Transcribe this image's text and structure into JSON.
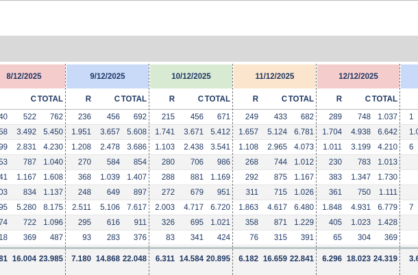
{
  "groups": [
    {
      "date": "8/12/2025",
      "color": "#f4cccc",
      "columns": [
        {
          "header": null,
          "rows": [
            "40",
            "58",
            "99",
            "53",
            "41",
            "03",
            "95",
            "74",
            "18"
          ],
          "total": "81"
        },
        {
          "header": "C",
          "rows": [
            "522",
            "3.492",
            "2.831",
            "787",
            "1.167",
            "834",
            "5.280",
            "722",
            "369"
          ],
          "total": "16.004"
        },
        {
          "header": "TOTAL",
          "rows": [
            "762",
            "5.450",
            "4.230",
            "1.040",
            "1.608",
            "1.137",
            "8.175",
            "1.096",
            "487"
          ],
          "total": "23.985"
        }
      ]
    },
    {
      "date": "9/12/2025",
      "color": "#c9daf8",
      "columns": [
        {
          "header": "R",
          "rows": [
            "236",
            "1.951",
            "1.208",
            "270",
            "368",
            "248",
            "2.511",
            "295",
            "93"
          ],
          "total": "7.180"
        },
        {
          "header": "C",
          "rows": [
            "456",
            "3.657",
            "2.478",
            "584",
            "1.039",
            "649",
            "5.106",
            "616",
            "283"
          ],
          "total": "14.868"
        },
        {
          "header": "TOTAL",
          "rows": [
            "692",
            "5.608",
            "3.686",
            "854",
            "1.407",
            "897",
            "7.617",
            "911",
            "376"
          ],
          "total": "22.048"
        }
      ]
    },
    {
      "date": "10/12/2025",
      "color": "#d9ead3",
      "columns": [
        {
          "header": "R",
          "rows": [
            "215",
            "1.741",
            "1.103",
            "280",
            "288",
            "272",
            "2.003",
            "326",
            "83"
          ],
          "total": "6.311"
        },
        {
          "header": "C",
          "rows": [
            "456",
            "3.671",
            "2.438",
            "706",
            "881",
            "679",
            "4.717",
            "695",
            "341"
          ],
          "total": "14.584"
        },
        {
          "header": "TOTAL",
          "rows": [
            "671",
            "5.412",
            "3.541",
            "986",
            "1.169",
            "951",
            "6.720",
            "1.021",
            "424"
          ],
          "total": "20.895"
        }
      ]
    },
    {
      "date": "11/12/2025",
      "color": "#fce5cd",
      "columns": [
        {
          "header": "R",
          "rows": [
            "249",
            "1.657",
            "1.108",
            "268",
            "292",
            "311",
            "1.863",
            "358",
            "76"
          ],
          "total": "6.182"
        },
        {
          "header": "C",
          "rows": [
            "433",
            "5.124",
            "2.965",
            "744",
            "875",
            "715",
            "4.617",
            "871",
            "315"
          ],
          "total": "16.659"
        },
        {
          "header": "TOTAL",
          "rows": [
            "682",
            "6.781",
            "4.073",
            "1.012",
            "1.167",
            "1.026",
            "6.480",
            "1.229",
            "391"
          ],
          "total": "22.841"
        }
      ]
    },
    {
      "date": "12/12/2025",
      "color": "#f4cccc",
      "columns": [
        {
          "header": "R",
          "rows": [
            "289",
            "1.704",
            "1.011",
            "230",
            "383",
            "361",
            "1.848",
            "405",
            "65"
          ],
          "total": "6.296"
        },
        {
          "header": "C",
          "rows": [
            "748",
            "4.938",
            "3.199",
            "783",
            "1.347",
            "750",
            "4.931",
            "1.023",
            "304"
          ],
          "total": "18.023"
        },
        {
          "header": "TOTAL",
          "rows": [
            "1.037",
            "6.642",
            "4.210",
            "1.013",
            "1.730",
            "1.111",
            "6.779",
            "1.428",
            "369"
          ],
          "total": "24.319"
        }
      ]
    },
    {
      "date": null,
      "color": "#c9daf8",
      "columns": [
        {
          "header": null,
          "rows": [
            "1",
            "1.0",
            "6",
            null,
            null,
            null,
            "7",
            null,
            null
          ],
          "total": "3.6"
        }
      ]
    }
  ]
}
